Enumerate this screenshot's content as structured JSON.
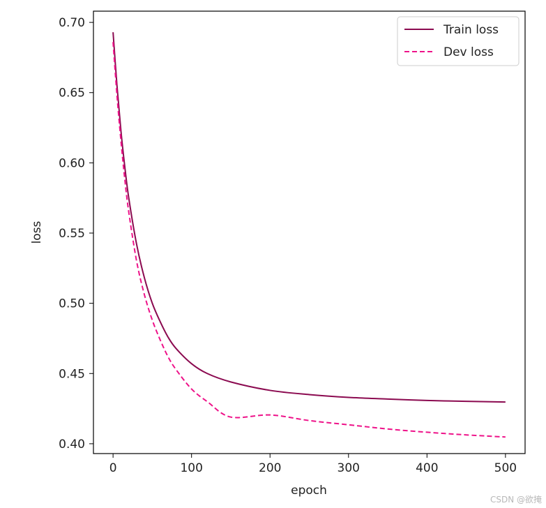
{
  "chart_data": {
    "type": "line",
    "xlabel": "epoch",
    "ylabel": "loss",
    "xlim": [
      -25,
      525
    ],
    "ylim": [
      0.393,
      0.708
    ],
    "xticks": [
      0,
      100,
      200,
      300,
      400,
      500
    ],
    "yticks": [
      0.4,
      0.45,
      0.5,
      0.55,
      0.6,
      0.65,
      0.7
    ],
    "xtick_labels": [
      "0",
      "100",
      "200",
      "300",
      "400",
      "500"
    ],
    "ytick_labels": [
      "0.40",
      "0.45",
      "0.50",
      "0.55",
      "0.60",
      "0.65",
      "0.70"
    ],
    "grid": false,
    "legend_position": "top-right",
    "x": [
      0,
      5,
      10,
      15,
      20,
      30,
      40,
      50,
      60,
      70,
      80,
      100,
      120,
      150,
      200,
      250,
      300,
      350,
      400,
      450,
      500
    ],
    "series": [
      {
        "name": "Train loss",
        "color": "#8b0a50",
        "dash": "solid",
        "values": [
          0.693,
          0.655,
          0.623,
          0.597,
          0.575,
          0.542,
          0.518,
          0.5,
          0.487,
          0.476,
          0.468,
          0.457,
          0.45,
          0.444,
          0.438,
          0.435,
          0.433,
          0.4318,
          0.4308,
          0.4302,
          0.4297
        ]
      },
      {
        "name": "Dev loss",
        "color": "#ee1289",
        "dash": "dashed",
        "values": [
          0.686,
          0.648,
          0.616,
          0.588,
          0.565,
          0.53,
          0.506,
          0.488,
          0.474,
          0.462,
          0.453,
          0.439,
          0.43,
          0.419,
          0.4205,
          0.4165,
          0.4135,
          0.4105,
          0.4082,
          0.4063,
          0.4048
        ]
      }
    ]
  },
  "watermark": "CSDN @欲掩"
}
